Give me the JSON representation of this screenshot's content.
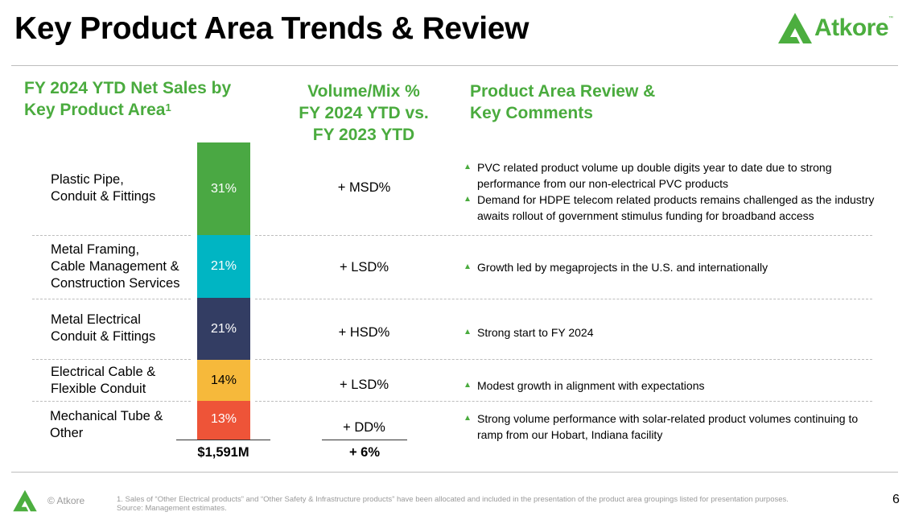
{
  "slide": {
    "title": "Key Product Area Trends & Review",
    "page_number": "6"
  },
  "brand": {
    "name": "Atkore",
    "trademark": "™",
    "logo_icon": "atkore-triangle-icon",
    "accent_color": "#4aab3e"
  },
  "headers": {
    "sales_line1": "FY 2024 YTD Net Sales by",
    "sales_line2": "Key Product Area",
    "sales_footnote_mark": "1",
    "volume_line1": "Volume/Mix %",
    "volume_line2": "FY 2024 YTD vs.",
    "volume_line3": "FY 2023 YTD",
    "review_line1": "Product Area Review &",
    "review_line2": "Key Comments"
  },
  "chart_data": {
    "type": "bar",
    "subtype": "stacked-100",
    "title": "FY 2024 YTD Net Sales by Key Product Area",
    "categories": [
      "Plastic Pipe, Conduit & Fittings",
      "Metal Framing, Cable Management & Construction Services",
      "Metal Electrical Conduit & Fittings",
      "Electrical Cable & Flexible Conduit",
      "Mechanical Tube & Other"
    ],
    "values": [
      31,
      21,
      21,
      14,
      13
    ],
    "value_labels": [
      "31%",
      "21%",
      "21%",
      "14%",
      "13%"
    ],
    "colors": [
      "#4aa843",
      "#00b5c3",
      "#333d63",
      "#f6b93b",
      "#ee5438"
    ],
    "label_colors": [
      "#ffffff",
      "#ffffff",
      "#ffffff",
      "#000000",
      "#ffffff"
    ],
    "unit": "%",
    "total_label": "$1,591M"
  },
  "rows": [
    {
      "label_lines": [
        "Plastic Pipe,",
        "Conduit & Fittings"
      ],
      "volume_mix": "+ MSD%",
      "comments": [
        "PVC related product volume up double digits year to date due to strong performance from our non-electrical PVC products",
        "Demand for HDPE telecom related products remains challenged as the industry awaits rollout of government stimulus funding for broadband access"
      ]
    },
    {
      "label_lines": [
        "Metal Framing,",
        "Cable Management &",
        "Construction Services"
      ],
      "volume_mix": "+ LSD%",
      "comments": [
        "Growth led by megaprojects in the U.S. and internationally"
      ]
    },
    {
      "label_lines": [
        "Metal Electrical",
        "Conduit & Fittings"
      ],
      "volume_mix": "+ HSD%",
      "comments": [
        "Strong start to FY 2024"
      ]
    },
    {
      "label_lines": [
        "Electrical Cable &",
        "Flexible Conduit"
      ],
      "volume_mix": "+ LSD%",
      "comments": [
        "Modest growth in alignment with expectations"
      ]
    },
    {
      "label_lines": [
        "Mechanical Tube &",
        "Other"
      ],
      "volume_mix": "+ DD%",
      "comments": [
        "Strong volume performance with solar-related product volumes continuing to ramp from our Hobart, Indiana facility"
      ]
    }
  ],
  "totals": {
    "net_sales": "$1,591M",
    "volume_mix": "+ 6%"
  },
  "footer": {
    "copyright": "© Atkore",
    "footnote": "1.     Sales of “Other Electrical products” and “Other Safety & Infrastructure products” have been allocated and included in the presentation of the product area groupings listed for presentation purposes.",
    "source": "Source: Management estimates."
  }
}
